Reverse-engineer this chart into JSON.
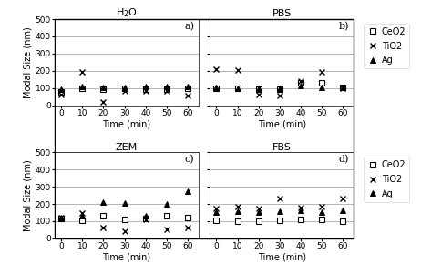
{
  "subplots": [
    {
      "title": "H$_2$O",
      "label": "a)",
      "CeO2": [
        75,
        100,
        95,
        100,
        95,
        95,
        100
      ],
      "TiO2": [
        60,
        195,
        20,
        80,
        80,
        80,
        55
      ],
      "Ag": [
        95,
        110,
        105,
        105,
        110,
        110,
        110
      ]
    },
    {
      "title": "PBS",
      "label": "b)",
      "CeO2": [
        100,
        100,
        95,
        95,
        130,
        130,
        105
      ],
      "TiO2": [
        210,
        205,
        60,
        55,
        140,
        195,
        100
      ],
      "Ag": [
        105,
        100,
        100,
        100,
        115,
        105,
        105
      ]
    },
    {
      "title": "ZEM",
      "label": "c)",
      "CeO2": [
        115,
        105,
        130,
        110,
        115,
        130,
        120
      ],
      "TiO2": [
        120,
        150,
        65,
        40,
        110,
        50,
        65
      ],
      "Ag": [
        120,
        130,
        210,
        205,
        130,
        200,
        275
      ]
    },
    {
      "title": "FBS",
      "label": "d)",
      "CeO2": [
        105,
        100,
        100,
        105,
        110,
        110,
        100
      ],
      "TiO2": [
        175,
        185,
        175,
        230,
        180,
        185,
        230
      ],
      "Ag": [
        155,
        160,
        155,
        160,
        165,
        155,
        165
      ]
    }
  ],
  "time": [
    0,
    10,
    20,
    30,
    40,
    50,
    60
  ],
  "ylim": [
    0,
    500
  ],
  "yticks": [
    0,
    100,
    200,
    300,
    400,
    500
  ],
  "xlabel": "Time (min)",
  "ylabel": "Modal Size (nm)",
  "legend_labels": [
    "CeO2",
    "TiO2",
    "Ag"
  ],
  "legend_markers": [
    "s",
    "x",
    "^"
  ],
  "marker_color": "black",
  "bg_color": "#ffffff",
  "grid_color": "#aaaaaa",
  "fontsize_title": 8,
  "fontsize_label": 7,
  "fontsize_tick": 6.5,
  "fontsize_legend": 7
}
